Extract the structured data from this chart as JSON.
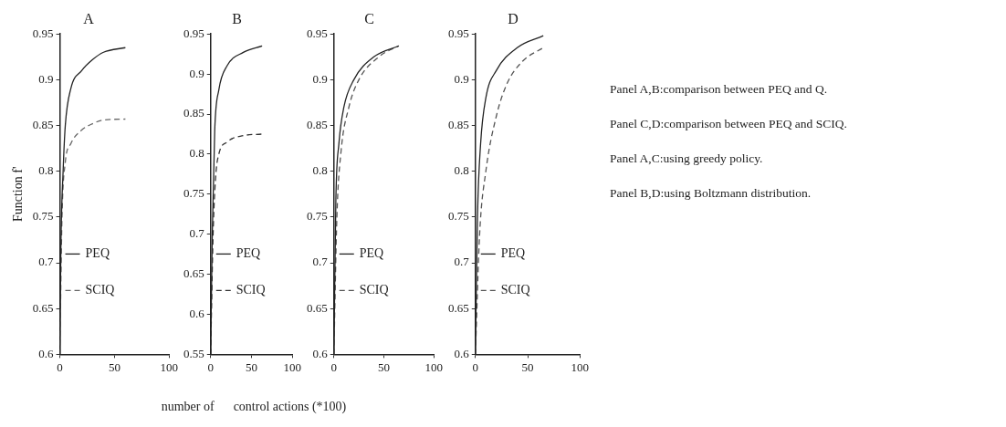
{
  "chart_data": [
    {
      "type": "line",
      "title": "A",
      "ylabel": "Function f'",
      "xlim": [
        0,
        100
      ],
      "xticks": [
        0,
        50,
        100
      ],
      "ylim": [
        0.6,
        0.95
      ],
      "yticks": [
        0.6,
        0.65,
        0.7,
        0.75,
        0.8,
        0.85,
        0.9,
        0.95
      ],
      "grid": false,
      "legend": "bottom left",
      "series": [
        {
          "name": "PEQ",
          "color": "#222222",
          "line_style": "solid",
          "x": [
            0,
            1,
            3,
            5,
            10,
            20,
            30,
            40,
            60
          ],
          "values": [
            0.6,
            0.72,
            0.8,
            0.85,
            0.89,
            0.91,
            0.922,
            0.93,
            0.935
          ]
        },
        {
          "name": "SCIQ",
          "color": "#666666",
          "line_style": "dashed",
          "x": [
            0,
            2,
            5,
            10,
            20,
            30,
            40,
            60
          ],
          "values": [
            0.6,
            0.75,
            0.81,
            0.83,
            0.845,
            0.852,
            0.856,
            0.857
          ]
        }
      ]
    },
    {
      "type": "line",
      "title": "B",
      "xlabel": "number of      control actions (*100)",
      "xlim": [
        0,
        100
      ],
      "xticks": [
        0,
        50,
        100
      ],
      "ylim": [
        0.55,
        0.95
      ],
      "yticks": [
        0.55,
        0.6,
        0.65,
        0.7,
        0.75,
        0.8,
        0.85,
        0.9,
        0.95
      ],
      "grid": false,
      "legend": "bottom left",
      "series": [
        {
          "name": "PEQ",
          "color": "#222222",
          "line_style": "solid",
          "x": [
            0,
            2,
            5,
            10,
            20,
            40,
            63
          ],
          "values": [
            0.55,
            0.7,
            0.83,
            0.88,
            0.91,
            0.927,
            0.935
          ]
        },
        {
          "name": "SCIQ",
          "color": "#333333",
          "line_style": "dashed",
          "x": [
            0,
            3,
            6,
            10,
            20,
            40,
            63
          ],
          "values": [
            0.55,
            0.7,
            0.77,
            0.8,
            0.815,
            0.823,
            0.825
          ]
        }
      ]
    },
    {
      "type": "line",
      "title": "C",
      "xlim": [
        0,
        100
      ],
      "xticks": [
        0,
        50,
        100
      ],
      "ylim": [
        0.6,
        0.95
      ],
      "yticks": [
        0.6,
        0.65,
        0.7,
        0.75,
        0.8,
        0.85,
        0.9,
        0.95
      ],
      "grid": false,
      "legend": "bottom left",
      "series": [
        {
          "name": "PEQ",
          "color": "#222222",
          "line_style": "solid",
          "x": [
            0,
            2,
            5,
            10,
            20,
            40,
            65
          ],
          "values": [
            0.6,
            0.77,
            0.83,
            0.87,
            0.9,
            0.925,
            0.937
          ]
        },
        {
          "name": "SCIQ",
          "color": "#555555",
          "line_style": "dashed",
          "x": [
            0,
            3,
            7,
            15,
            25,
            45,
            65
          ],
          "values": [
            0.6,
            0.75,
            0.82,
            0.87,
            0.9,
            0.925,
            0.937
          ]
        }
      ]
    },
    {
      "type": "line",
      "title": "D",
      "xlim": [
        0,
        100
      ],
      "xticks": [
        0,
        50,
        100
      ],
      "ylim": [
        0.6,
        0.95
      ],
      "yticks": [
        0.6,
        0.65,
        0.7,
        0.75,
        0.8,
        0.85,
        0.9,
        0.95
      ],
      "grid": false,
      "legend": "bottom left",
      "series": [
        {
          "name": "PEQ",
          "color": "#222222",
          "line_style": "solid",
          "x": [
            0,
            2,
            5,
            10,
            20,
            40,
            65
          ],
          "values": [
            0.6,
            0.75,
            0.83,
            0.88,
            0.91,
            0.935,
            0.948
          ]
        },
        {
          "name": "SCIQ",
          "color": "#555555",
          "line_style": "dashed",
          "x": [
            0,
            4,
            10,
            20,
            30,
            45,
            65
          ],
          "values": [
            0.6,
            0.73,
            0.8,
            0.86,
            0.895,
            0.92,
            0.935
          ]
        }
      ]
    },
    {
      "type": "other",
      "annotations": [
        "Panel A,B:comparison between PEQ and Q.",
        "Panel C,D:comparison between PEQ and SCIQ.",
        "Panel A,C:using greedy policy.",
        "Panel B,D:using Boltzmann distribution."
      ]
    }
  ]
}
